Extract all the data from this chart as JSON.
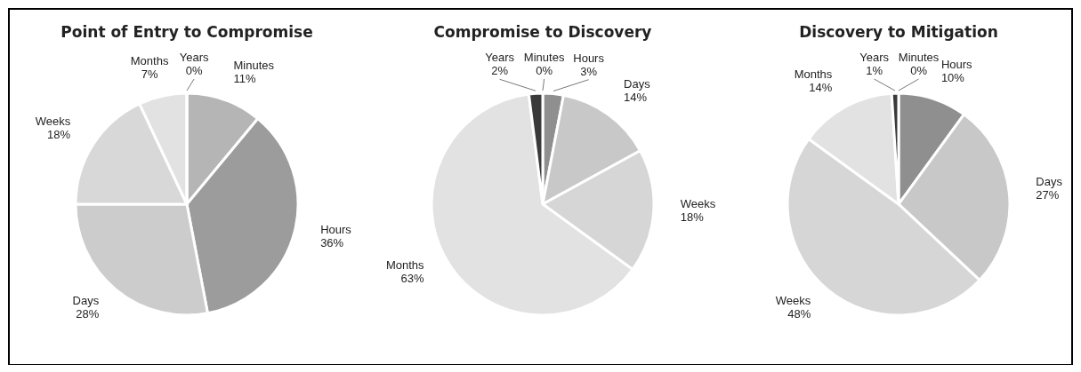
{
  "chart_data": [
    {
      "type": "pie",
      "title": "Point of Entry to Compromise",
      "categories": [
        "Minutes",
        "Hours",
        "Days",
        "Weeks",
        "Months",
        "Years"
      ],
      "values": [
        11,
        36,
        28,
        18,
        7,
        0
      ],
      "colors": [
        "#b5b5b5",
        "#9c9c9c",
        "#cccccc",
        "#d8d8d8",
        "#e2e2e2",
        "#555555"
      ],
      "value_labels": [
        "11%",
        "36%",
        "28%",
        "18%",
        "7%",
        "0%"
      ]
    },
    {
      "type": "pie",
      "title": "Compromise to Discovery",
      "categories": [
        "Minutes",
        "Hours",
        "Days",
        "Weeks",
        "Months",
        "Years"
      ],
      "values": [
        0,
        3,
        14,
        18,
        63,
        2
      ],
      "colors": [
        "#b5b5b5",
        "#8f8f8f",
        "#c8c8c8",
        "#d6d6d6",
        "#e2e2e2",
        "#3a3a3a"
      ],
      "value_labels": [
        "0%",
        "3%",
        "14%",
        "18%",
        "63%",
        "2%"
      ]
    },
    {
      "type": "pie",
      "title": "Discovery to Mitigation",
      "categories": [
        "Minutes",
        "Hours",
        "Days",
        "Weeks",
        "Months",
        "Years"
      ],
      "values": [
        0,
        10,
        27,
        48,
        14,
        1
      ],
      "colors": [
        "#b5b5b5",
        "#8f8f8f",
        "#c8c8c8",
        "#d6d6d6",
        "#e2e2e2",
        "#3a3a3a"
      ],
      "value_labels": [
        "0%",
        "10%",
        "27%",
        "48%",
        "14%",
        "1%"
      ]
    }
  ]
}
